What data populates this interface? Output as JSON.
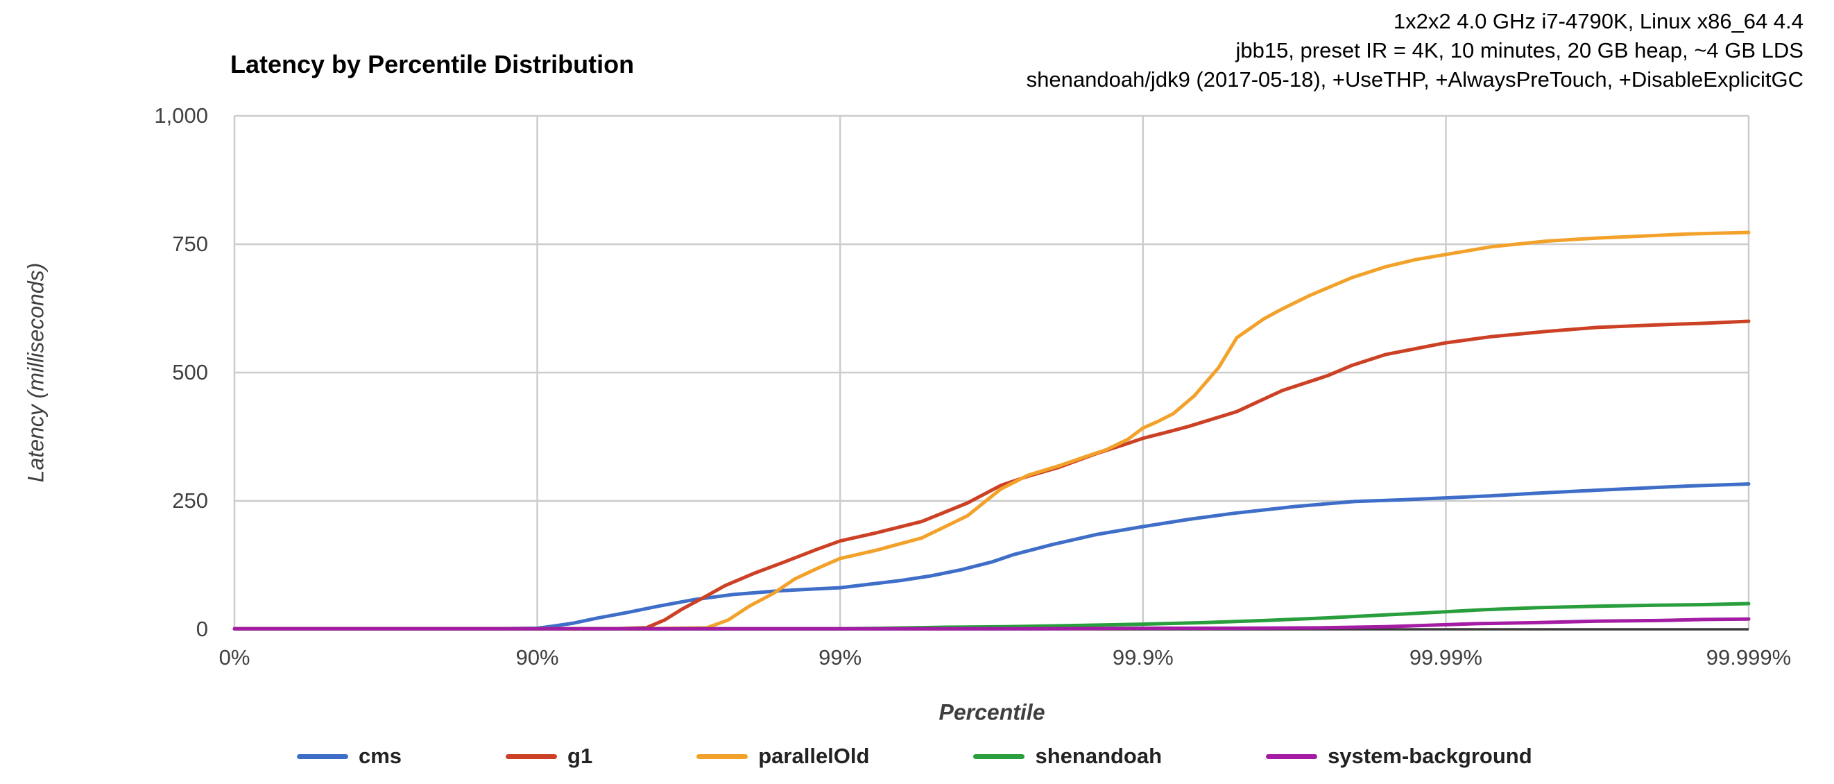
{
  "header": {
    "lines": [
      "1x2x2 4.0 GHz i7-4790K, Linux x86_64 4.4",
      "jbb15, preset IR = 4K, 10 minutes, 20 GB heap, ~4 GB LDS",
      "shenandoah/jdk9 (2017-05-18), +UseTHP, +AlwaysPreTouch, +DisableExplicitGC"
    ]
  },
  "chart_data": {
    "type": "line",
    "title": "Latency by Percentile Distribution",
    "xlabel": "Percentile",
    "ylabel": "Latency (milliseconds)",
    "grid": true,
    "legend_position": "bottom",
    "x_axis": {
      "scale": "log-percentile",
      "units_note": "u = number of nines = log10(1/(1-p))",
      "ticks": [
        {
          "label": "0%",
          "u": 0
        },
        {
          "label": "90%",
          "u": 1
        },
        {
          "label": "99%",
          "u": 2
        },
        {
          "label": "99.9%",
          "u": 3
        },
        {
          "label": "99.99%",
          "u": 4
        },
        {
          "label": "99.999%",
          "u": 5
        }
      ]
    },
    "y_axis": {
      "range": [
        0,
        1000
      ],
      "ticks": [
        {
          "label": "0",
          "v": 0
        },
        {
          "label": "250",
          "v": 250
        },
        {
          "label": "500",
          "v": 500
        },
        {
          "label": "750",
          "v": 750
        },
        {
          "label": "1,000",
          "v": 1000
        }
      ]
    },
    "series": [
      {
        "name": "cms",
        "color": "#3E6EC8",
        "points_u_ms": [
          [
            0,
            1
          ],
          [
            0.3,
            1
          ],
          [
            0.6,
            1
          ],
          [
            0.85,
            1
          ],
          [
            1.0,
            2
          ],
          [
            1.05,
            6
          ],
          [
            1.12,
            12
          ],
          [
            1.2,
            22
          ],
          [
            1.3,
            33
          ],
          [
            1.4,
            45
          ],
          [
            1.52,
            58
          ],
          [
            1.65,
            68
          ],
          [
            1.8,
            75
          ],
          [
            1.9,
            78
          ],
          [
            2.0,
            81
          ],
          [
            2.1,
            88
          ],
          [
            2.2,
            95
          ],
          [
            2.3,
            104
          ],
          [
            2.4,
            116
          ],
          [
            2.5,
            131
          ],
          [
            2.57,
            145
          ],
          [
            2.7,
            165
          ],
          [
            2.85,
            185
          ],
          [
            3.0,
            200
          ],
          [
            3.15,
            214
          ],
          [
            3.3,
            226
          ],
          [
            3.5,
            239
          ],
          [
            3.7,
            249
          ],
          [
            3.85,
            252
          ],
          [
            4.0,
            256
          ],
          [
            4.15,
            260
          ],
          [
            4.3,
            265
          ],
          [
            4.5,
            271
          ],
          [
            4.65,
            275
          ],
          [
            4.8,
            279
          ],
          [
            5.0,
            283
          ]
        ]
      },
      {
        "name": "g1",
        "color": "#CC4125",
        "points_u_ms": [
          [
            0,
            1
          ],
          [
            0.5,
            1
          ],
          [
            1.0,
            1
          ],
          [
            1.25,
            1
          ],
          [
            1.36,
            3
          ],
          [
            1.42,
            18
          ],
          [
            1.48,
            40
          ],
          [
            1.55,
            62
          ],
          [
            1.62,
            85
          ],
          [
            1.72,
            110
          ],
          [
            1.82,
            132
          ],
          [
            1.92,
            155
          ],
          [
            2.0,
            172
          ],
          [
            2.12,
            188
          ],
          [
            2.27,
            210
          ],
          [
            2.42,
            246
          ],
          [
            2.53,
            280
          ],
          [
            2.62,
            298
          ],
          [
            2.72,
            315
          ],
          [
            2.85,
            343
          ],
          [
            2.95,
            362
          ],
          [
            3.0,
            372
          ],
          [
            3.08,
            384
          ],
          [
            3.15,
            395
          ],
          [
            3.31,
            424
          ],
          [
            3.46,
            465
          ],
          [
            3.61,
            494
          ],
          [
            3.69,
            514
          ],
          [
            3.8,
            535
          ],
          [
            3.93,
            550
          ],
          [
            4.0,
            558
          ],
          [
            4.15,
            570
          ],
          [
            4.33,
            580
          ],
          [
            4.5,
            588
          ],
          [
            4.7,
            593
          ],
          [
            4.85,
            596
          ],
          [
            5.0,
            600
          ]
        ]
      },
      {
        "name": "parallelOld",
        "color": "#F2A22A",
        "points_u_ms": [
          [
            0,
            1
          ],
          [
            0.5,
            1
          ],
          [
            1.0,
            1
          ],
          [
            1.35,
            1
          ],
          [
            1.56,
            3
          ],
          [
            1.63,
            18
          ],
          [
            1.7,
            45
          ],
          [
            1.78,
            70
          ],
          [
            1.85,
            98
          ],
          [
            1.93,
            120
          ],
          [
            2.0,
            138
          ],
          [
            2.12,
            154
          ],
          [
            2.27,
            178
          ],
          [
            2.42,
            221
          ],
          [
            2.53,
            273
          ],
          [
            2.62,
            300
          ],
          [
            2.72,
            318
          ],
          [
            2.8,
            334
          ],
          [
            2.88,
            350
          ],
          [
            2.95,
            370
          ],
          [
            3.0,
            392
          ],
          [
            3.05,
            405
          ],
          [
            3.1,
            420
          ],
          [
            3.17,
            455
          ],
          [
            3.25,
            510
          ],
          [
            3.31,
            568
          ],
          [
            3.4,
            605
          ],
          [
            3.46,
            624
          ],
          [
            3.55,
            650
          ],
          [
            3.61,
            665
          ],
          [
            3.69,
            685
          ],
          [
            3.8,
            706
          ],
          [
            3.9,
            720
          ],
          [
            4.0,
            730
          ],
          [
            4.15,
            745
          ],
          [
            4.33,
            756
          ],
          [
            4.5,
            762
          ],
          [
            4.65,
            766
          ],
          [
            4.8,
            770
          ],
          [
            5.0,
            773
          ]
        ]
      },
      {
        "name": "shenandoah",
        "color": "#289E3C",
        "points_u_ms": [
          [
            0,
            1
          ],
          [
            0.6,
            1
          ],
          [
            1.2,
            1
          ],
          [
            1.8,
            1
          ],
          [
            2.0,
            1
          ],
          [
            2.15,
            2
          ],
          [
            2.35,
            4
          ],
          [
            2.55,
            5
          ],
          [
            2.75,
            7
          ],
          [
            3.0,
            10
          ],
          [
            3.2,
            13
          ],
          [
            3.4,
            17
          ],
          [
            3.6,
            22
          ],
          [
            3.8,
            28
          ],
          [
            4.0,
            34
          ],
          [
            4.12,
            38
          ],
          [
            4.3,
            42
          ],
          [
            4.5,
            45
          ],
          [
            4.7,
            47
          ],
          [
            4.85,
            48
          ],
          [
            5.0,
            50
          ]
        ]
      },
      {
        "name": "system-background",
        "color": "#A31CA3",
        "points_u_ms": [
          [
            0,
            1
          ],
          [
            0.7,
            1
          ],
          [
            1.4,
            1
          ],
          [
            2.1,
            1
          ],
          [
            2.6,
            1
          ],
          [
            3.0,
            2
          ],
          [
            3.3,
            2
          ],
          [
            3.6,
            3
          ],
          [
            3.8,
            5
          ],
          [
            3.95,
            8
          ],
          [
            4.1,
            11
          ],
          [
            4.3,
            13
          ],
          [
            4.5,
            16
          ],
          [
            4.7,
            17
          ],
          [
            4.85,
            19
          ],
          [
            5.0,
            20
          ]
        ]
      }
    ],
    "style": {
      "gridline_color": "#CCCCCC",
      "axis_line_color": "#3B3B3B",
      "tick_label_color": "#404040",
      "series_stroke_width": 5
    }
  }
}
